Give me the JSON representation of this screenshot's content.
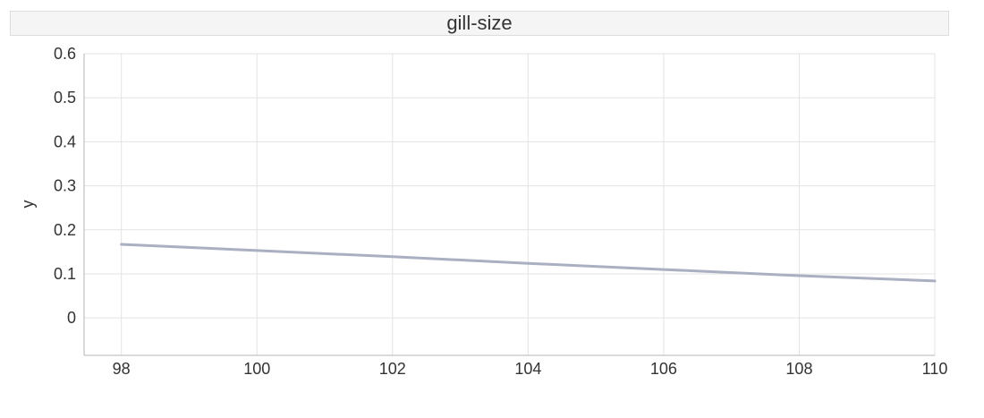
{
  "chart_data": {
    "type": "line",
    "title": "gill-size",
    "xlabel": "",
    "ylabel": "y",
    "xlim": [
      97.45,
      110
    ],
    "ylim": [
      -0.085,
      0.6
    ],
    "x_ticks": [
      98,
      100,
      102,
      104,
      106,
      108,
      110
    ],
    "y_ticks": [
      0,
      0.1,
      0.2,
      0.3,
      0.4,
      0.5,
      0.6
    ],
    "grid": true,
    "series": [
      {
        "color": "#aab0c2",
        "x": [
          98,
          100,
          102,
          104,
          106,
          108,
          110
        ],
        "y": [
          0.167,
          0.153,
          0.139,
          0.124,
          0.11,
          0.096,
          0.084
        ]
      }
    ]
  }
}
